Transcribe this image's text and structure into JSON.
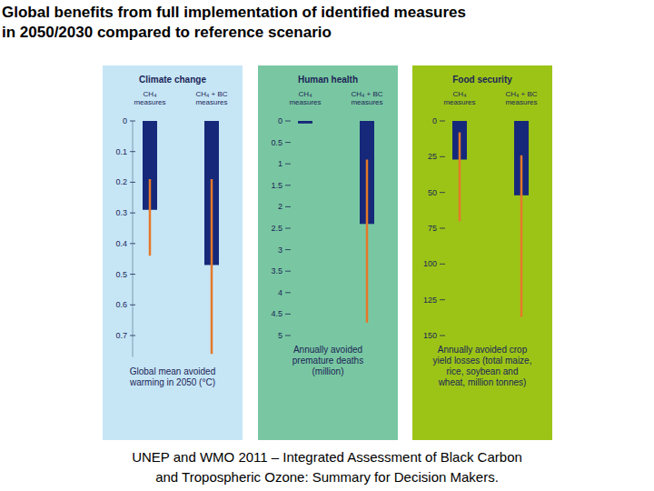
{
  "title": [
    "Global benefits from full implementation of identified measures",
    "in 2050/2030 compared to reference scenario"
  ],
  "source": [
    "UNEP and WMO 2011 – Integrated Assessment of Black Carbon",
    "and Tropospheric Ozone: Summary for Decision Makers."
  ],
  "chart_data": [
    {
      "type": "bar",
      "title": "Climate change",
      "categories": [
        "CH₄ measures",
        "CH₄ + BC measures"
      ],
      "values": [
        0.29,
        0.47
      ],
      "error_low": [
        0.19,
        0.19
      ],
      "error_high": [
        0.44,
        0.76
      ],
      "color": "#16287a",
      "y_label": "Global mean avoided warming in 2050 (°C)",
      "ylim": [
        0,
        0.77
      ],
      "yticks": [
        0,
        0.1,
        0.2,
        0.3,
        0.4,
        0.5,
        0.6,
        0.7
      ]
    },
    {
      "type": "bar",
      "title": "Human health",
      "categories": [
        "CH₄ measures",
        "CH₄ + BC measures"
      ],
      "values": [
        0.06,
        2.4
      ],
      "error_low": [
        null,
        0.9
      ],
      "error_high": [
        null,
        4.7
      ],
      "color": "#16287a",
      "y_label": "Annually avoided premature deaths (million)",
      "ylim": [
        0,
        5
      ],
      "yticks": [
        0,
        0.5,
        1,
        1.5,
        2,
        2.5,
        3,
        3.5,
        4,
        4.5,
        5
      ]
    },
    {
      "type": "bar",
      "title": "Food security",
      "categories": [
        "CH₄ measures",
        "CH₄ + BC measures"
      ],
      "values": [
        27,
        52
      ],
      "error_low": [
        8,
        24
      ],
      "error_high": [
        70,
        137
      ],
      "color": "#16287a",
      "y_label": "Annually avoided crop yield losses (total maize, rice, soybean and wheat, million tonnes)",
      "ylim": [
        0,
        150
      ],
      "yticks": [
        0,
        25,
        50,
        75,
        100,
        125,
        150
      ]
    }
  ]
}
